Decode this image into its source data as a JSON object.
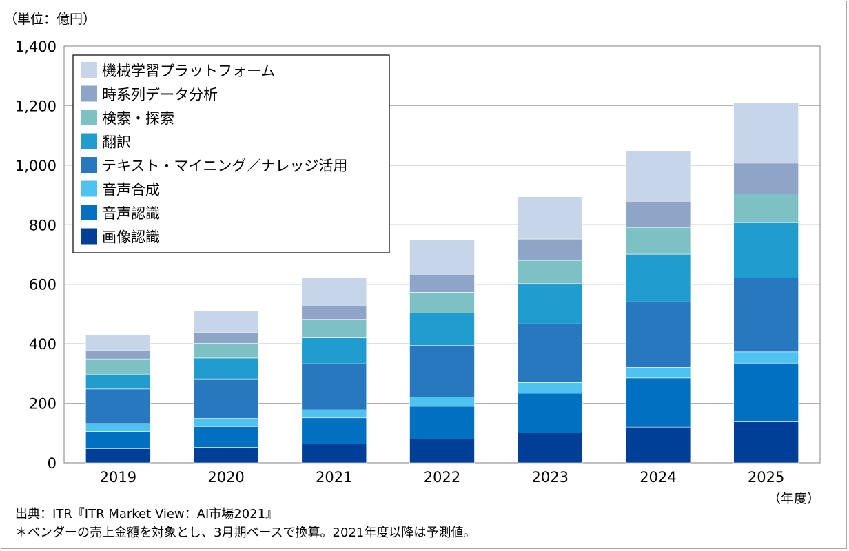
{
  "chart_data": {
    "type": "bar",
    "stacked": true,
    "unit_label": "（単位：億円）",
    "x_unit_label": "（年度）",
    "categories": [
      "2019",
      "2020",
      "2021",
      "2022",
      "2023",
      "2024",
      "2025"
    ],
    "ylim": [
      0,
      1400
    ],
    "yticks": [
      0,
      200,
      400,
      600,
      800,
      1000,
      1200,
      1400
    ],
    "ytick_labels": [
      "0",
      "200",
      "400",
      "600",
      "800",
      "1,000",
      "1,200",
      "1,400"
    ],
    "grid": true,
    "legend_position": "top-left",
    "series": [
      {
        "name": "画像認識",
        "color": "#003f98",
        "values": [
          47,
          52,
          64,
          80,
          101,
          120,
          140
        ]
      },
      {
        "name": "音声認識",
        "color": "#0070c0",
        "values": [
          58,
          70,
          87,
          110,
          133,
          165,
          195
        ]
      },
      {
        "name": "音声合成",
        "color": "#4fc3f0",
        "values": [
          27,
          27,
          27,
          31,
          36,
          36,
          38
        ]
      },
      {
        "name": "テキスト・マイニング／ナレッジ活用",
        "color": "#2778bf",
        "values": [
          116,
          133,
          155,
          173,
          197,
          220,
          248
        ]
      },
      {
        "name": "翻訳",
        "color": "#209cce",
        "values": [
          50,
          70,
          87,
          109,
          135,
          160,
          186
        ]
      },
      {
        "name": "検索・探索",
        "color": "#7ec1c4",
        "values": [
          51,
          50,
          62,
          70,
          78,
          90,
          97
        ]
      },
      {
        "name": "時系列データ分析",
        "color": "#8ea5c8",
        "values": [
          28,
          37,
          44,
          58,
          72,
          85,
          103
        ]
      },
      {
        "name": "機械学習プラットフォーム",
        "color": "#c6d5e8",
        "values": [
          52,
          73,
          95,
          118,
          142,
          173,
          202
        ]
      }
    ]
  },
  "footer": {
    "source": "出典：ITR『ITR Market View：AI市場2021』",
    "note": "＊ベンダーの売上金額を対象とし、3月期ベースで換算。2021年度以降は予測値。"
  }
}
